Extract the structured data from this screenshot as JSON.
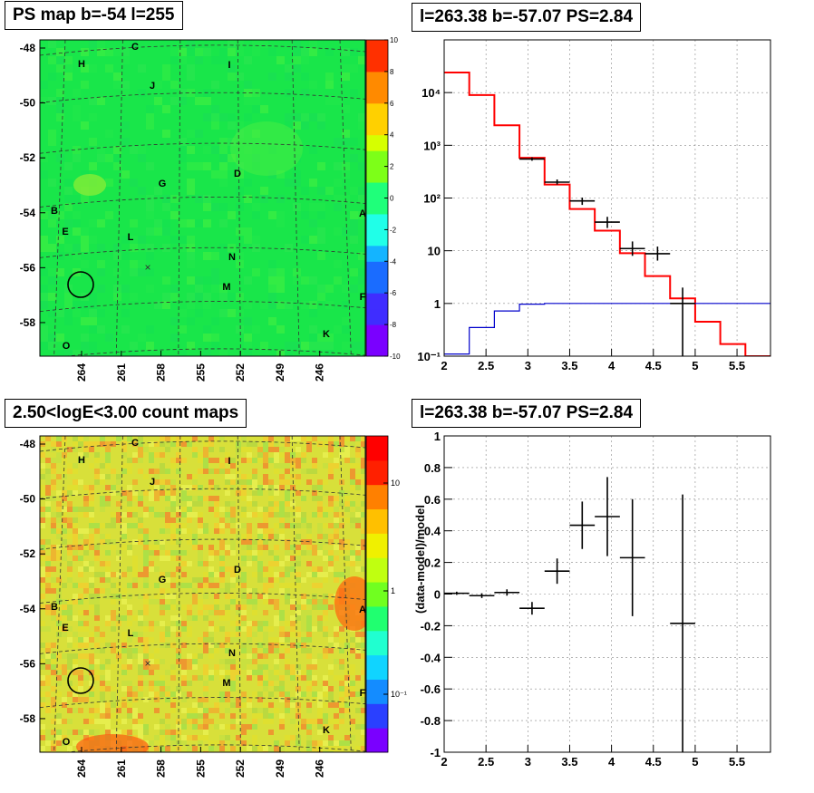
{
  "panels": {
    "psmap": {
      "title": "PS map b=-54 l=255",
      "y_ticks": [
        "-48",
        "-50",
        "-52",
        "-54",
        "-56",
        "-58"
      ],
      "x_ticks": [
        "264",
        "261",
        "258",
        "255",
        "252",
        "249",
        "246"
      ],
      "colorbar_ticks": [
        "10",
        "8",
        "6",
        "4",
        "2",
        "0",
        "-2",
        "-4",
        "-6",
        "-8",
        "-10"
      ],
      "colorbar_colors": [
        "#7a00ff",
        "#3f2dff",
        "#1a6cff",
        "#14b4ff",
        "#20ffe8",
        "#1fff7a",
        "#7dff18",
        "#d6ff00",
        "#ffd000",
        "#ff8a00",
        "#ff3000"
      ],
      "background_color": "#19e64a"
    },
    "countmap": {
      "title": "2.50<logE<3.00 count maps",
      "y_ticks": [
        "-48",
        "-50",
        "-52",
        "-54",
        "-56",
        "-58"
      ],
      "x_ticks": [
        "264",
        "261",
        "258",
        "255",
        "252",
        "249",
        "246"
      ],
      "colorbar_ticks": [
        "10",
        "1",
        "10⁻¹"
      ],
      "background_color": "#d8e03a"
    },
    "sources": [
      "H",
      "C",
      "I",
      "J",
      "G",
      "D",
      "B",
      "E",
      "L",
      "A",
      "N",
      "M",
      "F",
      "K",
      "O"
    ],
    "marker_cross": "×"
  },
  "chart_data": [
    {
      "type": "line",
      "title": "l=263.38 b=-57.07 PS=2.84",
      "xlabel": "",
      "ylabel": "",
      "xlim": [
        2,
        5.9
      ],
      "ylim": [
        0.1,
        100000
      ],
      "yscale": "log",
      "x_ticks": [
        "2",
        "2.5",
        "3",
        "3.5",
        "4",
        "4.5",
        "5",
        "5.5"
      ],
      "y_ticks": [
        "10⁻¹",
        "1",
        "10",
        "10²",
        "10³",
        "10⁴"
      ],
      "grid": true,
      "series": [
        {
          "color": "#ff0000",
          "style": "histogram",
          "bin_edges": [
            2.0,
            2.3,
            2.6,
            2.9,
            3.2,
            3.5,
            3.8,
            4.1,
            4.4,
            4.7,
            5.0,
            5.3,
            5.6,
            5.9
          ],
          "values": [
            24000,
            9000,
            2400,
            580,
            180,
            62,
            24,
            9,
            3.3,
            1.25,
            0.45,
            0.17,
            0.09
          ]
        },
        {
          "color": "#0000cc",
          "style": "histogram",
          "bin_edges": [
            2.0,
            2.3,
            2.6,
            2.9,
            3.2,
            3.5,
            3.8,
            4.1,
            4.4,
            4.7,
            5.0,
            5.3,
            5.6,
            5.9
          ],
          "values": [
            0.11,
            0.35,
            0.72,
            0.97,
            1.0,
            1.0,
            1.0,
            1.0,
            1.0,
            1.0,
            1.0,
            1.0,
            1.0
          ]
        },
        {
          "color": "#000000",
          "style": "errorbar",
          "points": [
            {
              "x": 3.05,
              "y": 550,
              "xerr": 0.15,
              "ylo": 510,
              "yhi": 590
            },
            {
              "x": 3.35,
              "y": 200,
              "xerr": 0.15,
              "ylo": 180,
              "yhi": 225
            },
            {
              "x": 3.65,
              "y": 88,
              "xerr": 0.15,
              "ylo": 74,
              "yhi": 102
            },
            {
              "x": 3.95,
              "y": 35,
              "xerr": 0.15,
              "ylo": 27,
              "yhi": 44
            },
            {
              "x": 4.25,
              "y": 11,
              "xerr": 0.15,
              "ylo": 8,
              "yhi": 15
            },
            {
              "x": 4.55,
              "y": 8.8,
              "xerr": 0.15,
              "ylo": 6.5,
              "yhi": 12
            },
            {
              "x": 4.85,
              "y": 1.0,
              "xerr": 0.15,
              "ylo": 0.1,
              "yhi": 2.0
            }
          ]
        }
      ]
    },
    {
      "type": "scatter",
      "title": "l=263.38 b=-57.07 PS=2.84",
      "xlabel": "",
      "ylabel": "(data-model)/model",
      "xlim": [
        2,
        5.9
      ],
      "ylim": [
        -1,
        1
      ],
      "x_ticks": [
        "2",
        "2.5",
        "3",
        "3.5",
        "4",
        "4.5",
        "5",
        "5.5"
      ],
      "y_ticks": [
        "1",
        "0.8",
        "0.6",
        "0.4",
        "0.2",
        "0",
        "-0.2",
        "-0.4",
        "-0.6",
        "-0.8",
        "-1"
      ],
      "grid": true,
      "series": [
        {
          "color": "#000000",
          "points": [
            {
              "x": 2.15,
              "y": 0.005,
              "xerr": 0.15,
              "yerr": 0.01
            },
            {
              "x": 2.45,
              "y": -0.01,
              "xerr": 0.15,
              "yerr": 0.015
            },
            {
              "x": 2.75,
              "y": 0.01,
              "xerr": 0.15,
              "yerr": 0.02
            },
            {
              "x": 3.05,
              "y": -0.09,
              "xerr": 0.15,
              "yerr": 0.04
            },
            {
              "x": 3.35,
              "y": 0.145,
              "xerr": 0.15,
              "yerr": 0.08
            },
            {
              "x": 3.65,
              "y": 0.435,
              "xerr": 0.15,
              "yerr": 0.15
            },
            {
              "x": 3.95,
              "y": 0.49,
              "xerr": 0.15,
              "yerr": 0.25
            },
            {
              "x": 4.25,
              "y": 0.23,
              "xerr": 0.15,
              "yerr": 0.37
            },
            {
              "x": 4.85,
              "y": -0.185,
              "xerr": 0.15,
              "yerr": 0.815
            }
          ]
        }
      ]
    }
  ]
}
